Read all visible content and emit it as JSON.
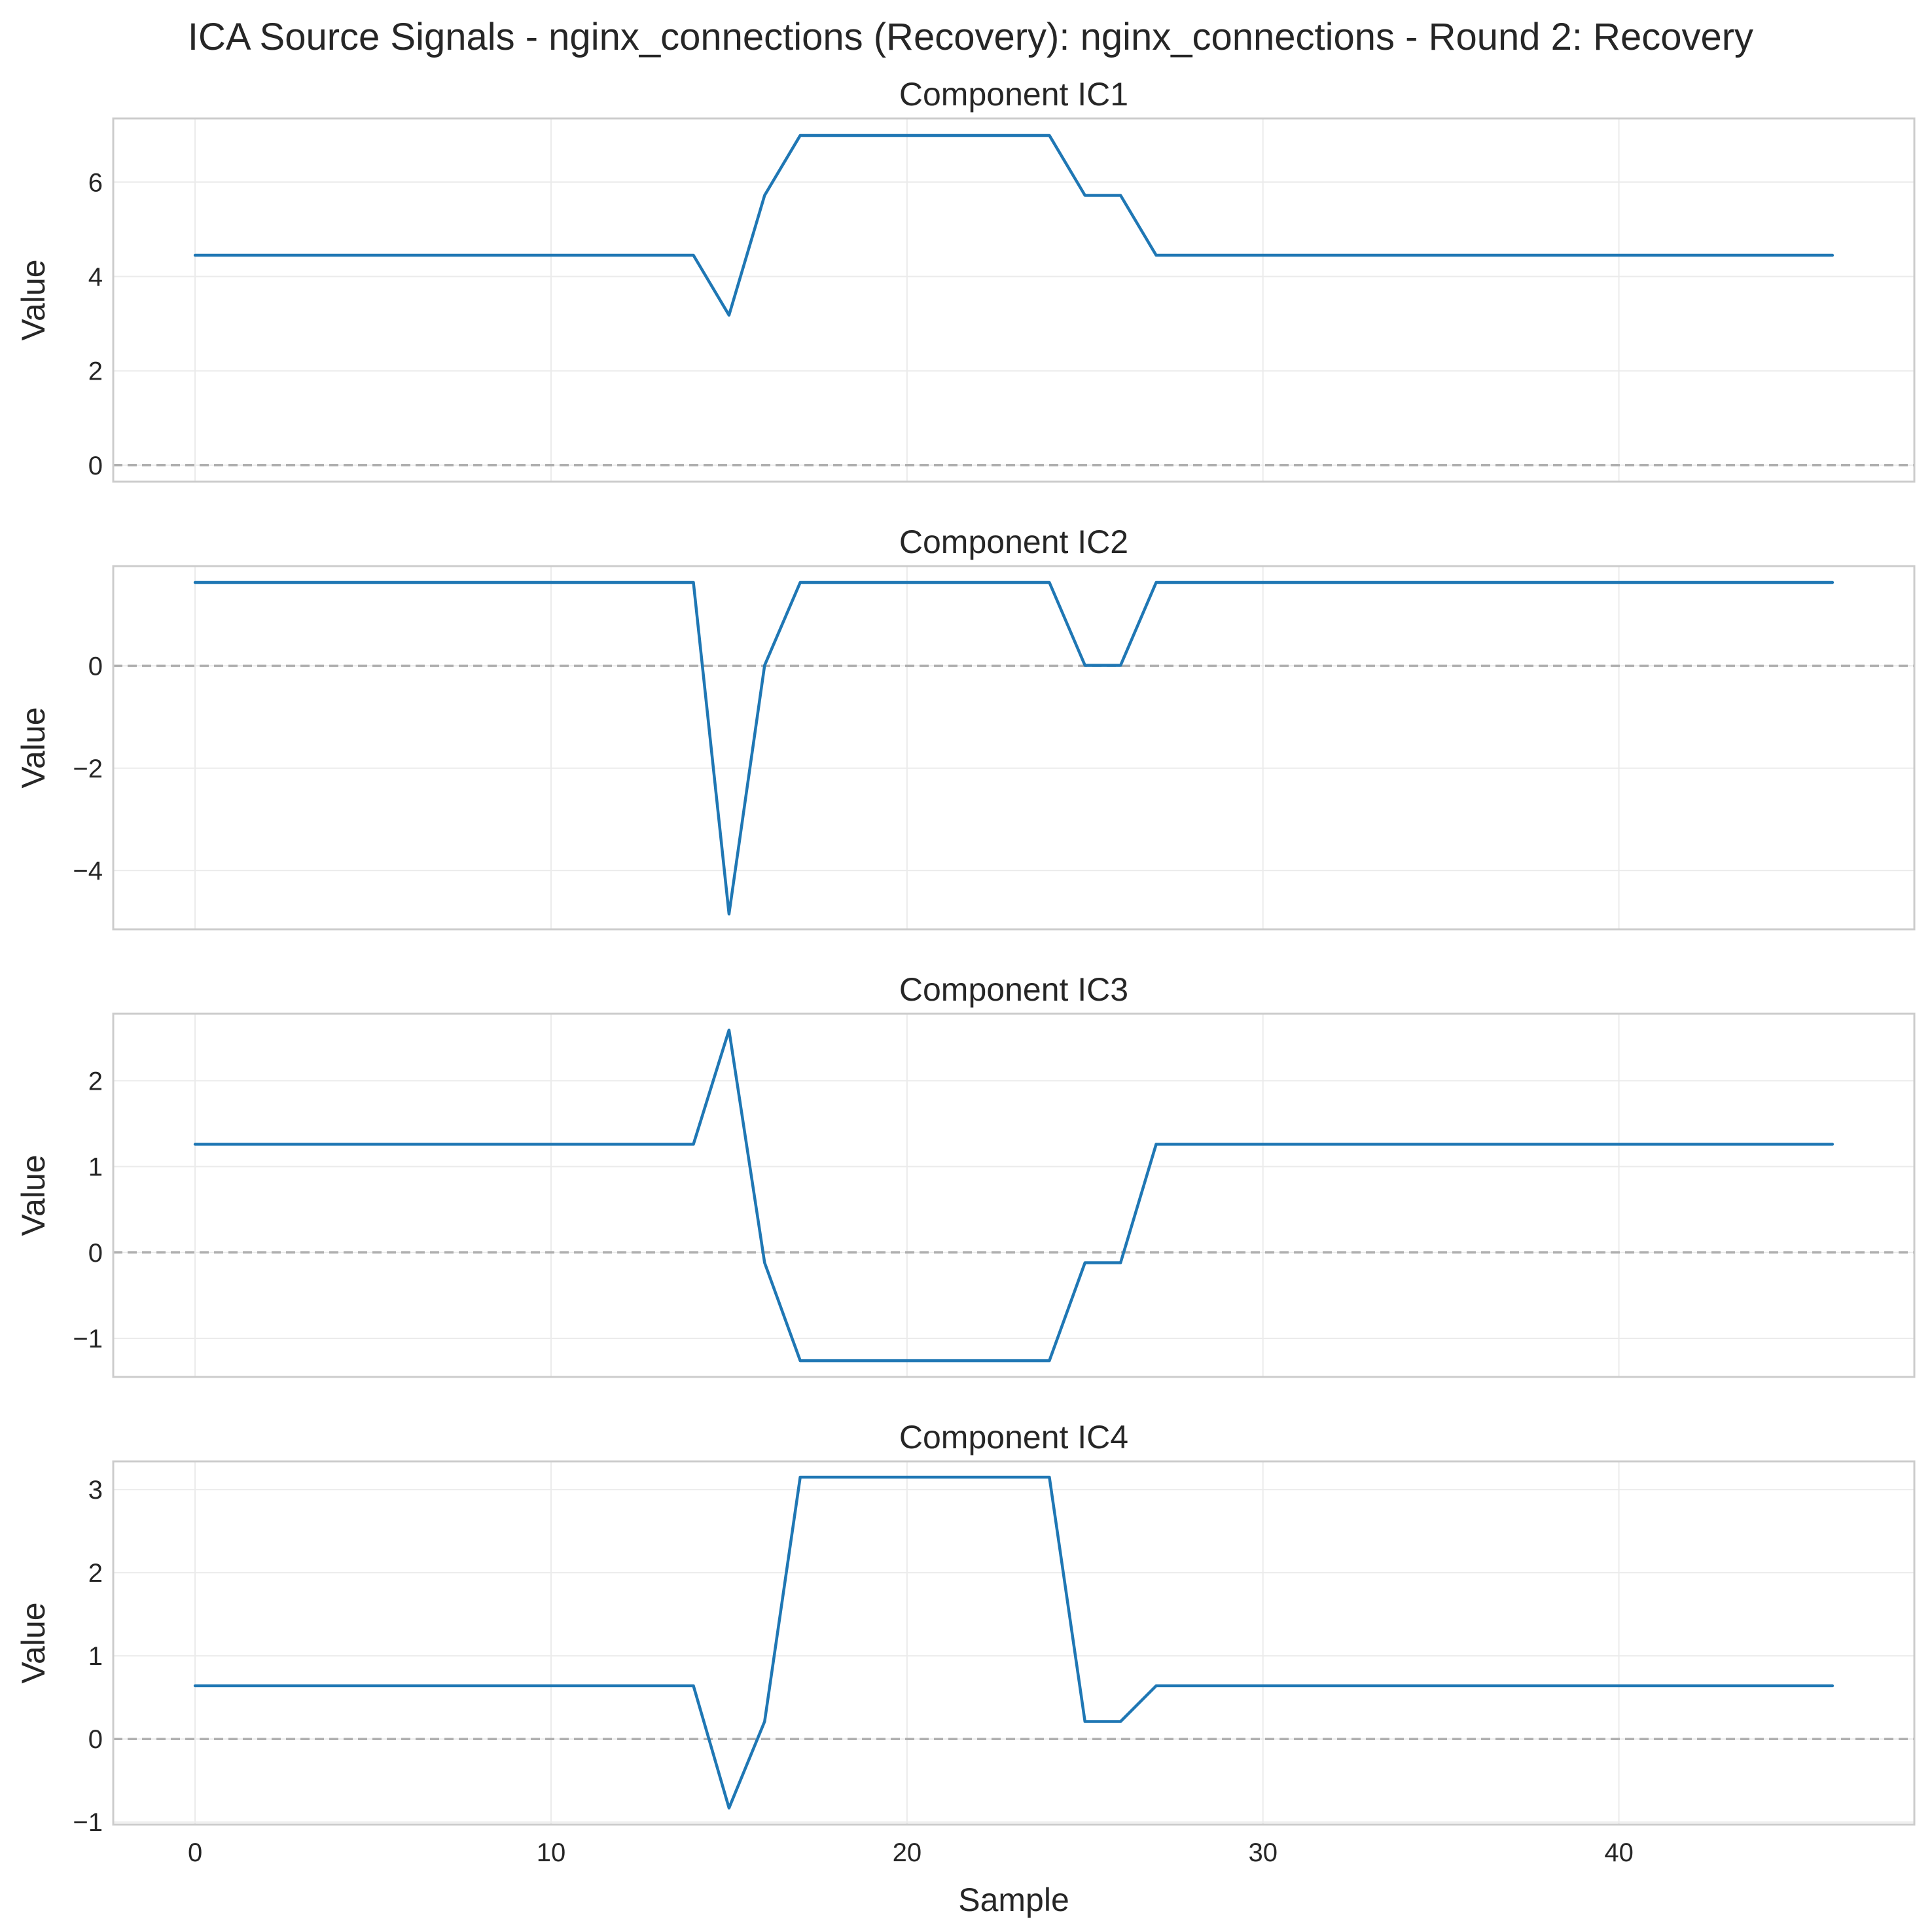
{
  "figure": {
    "title": "ICA Source Signals - nginx_connections (Recovery): nginx_connections - Round 2: Recovery"
  },
  "chart_data": [
    {
      "type": "line",
      "title": "Component IC1",
      "xlabel": "",
      "ylabel": "Value",
      "xlim": [
        -2.3,
        48.3
      ],
      "ylim": [
        -0.35,
        7.35
      ],
      "xticks": [
        0,
        10,
        20,
        30,
        40
      ],
      "yticks": [
        0,
        2,
        4,
        6
      ],
      "grid": true,
      "reference_line": 0,
      "series": [
        {
          "color": "#1f77b4",
          "x": [
            0,
            1,
            2,
            3,
            4,
            5,
            6,
            7,
            8,
            9,
            10,
            11,
            12,
            13,
            14,
            15,
            16,
            17,
            18,
            19,
            20,
            21,
            22,
            23,
            24,
            25,
            26,
            27,
            28,
            29,
            30,
            31,
            32,
            33,
            34,
            35,
            36,
            37,
            38,
            39,
            40,
            41,
            42,
            43,
            44,
            45,
            46
          ],
          "values": [
            4.45,
            4.45,
            4.45,
            4.45,
            4.45,
            4.45,
            4.45,
            4.45,
            4.45,
            4.45,
            4.45,
            4.45,
            4.45,
            4.45,
            4.45,
            3.18,
            5.72,
            6.99,
            6.99,
            6.99,
            6.99,
            6.99,
            6.99,
            6.99,
            6.99,
            5.72,
            5.72,
            4.45,
            4.45,
            4.45,
            4.45,
            4.45,
            4.45,
            4.45,
            4.45,
            4.45,
            4.45,
            4.45,
            4.45,
            4.45,
            4.45,
            4.45,
            4.45,
            4.45,
            4.45,
            4.45,
            4.45
          ]
        }
      ]
    },
    {
      "type": "line",
      "title": "Component IC2",
      "xlabel": "",
      "ylabel": "Value",
      "xlim": [
        -2.3,
        48.3
      ],
      "ylim": [
        -5.15,
        1.95
      ],
      "xticks": [
        0,
        10,
        20,
        30,
        40
      ],
      "yticks": [
        -4,
        -2,
        0
      ],
      "grid": true,
      "reference_line": 0,
      "series": [
        {
          "color": "#1f77b4",
          "x": [
            0,
            1,
            2,
            3,
            4,
            5,
            6,
            7,
            8,
            9,
            10,
            11,
            12,
            13,
            14,
            15,
            16,
            17,
            18,
            19,
            20,
            21,
            22,
            23,
            24,
            25,
            26,
            27,
            28,
            29,
            30,
            31,
            32,
            33,
            34,
            35,
            36,
            37,
            38,
            39,
            40,
            41,
            42,
            43,
            44,
            45,
            46
          ],
          "values": [
            1.63,
            1.63,
            1.63,
            1.63,
            1.63,
            1.63,
            1.63,
            1.63,
            1.63,
            1.63,
            1.63,
            1.63,
            1.63,
            1.63,
            1.63,
            -4.85,
            0.01,
            1.63,
            1.63,
            1.63,
            1.63,
            1.63,
            1.63,
            1.63,
            1.63,
            0.01,
            0.01,
            1.63,
            1.63,
            1.63,
            1.63,
            1.63,
            1.63,
            1.63,
            1.63,
            1.63,
            1.63,
            1.63,
            1.63,
            1.63,
            1.63,
            1.63,
            1.63,
            1.63,
            1.63,
            1.63,
            1.63
          ]
        }
      ]
    },
    {
      "type": "line",
      "title": "Component IC3",
      "xlabel": "",
      "ylabel": "Value",
      "xlim": [
        -2.3,
        48.3
      ],
      "ylim": [
        -1.45,
        2.78
      ],
      "xticks": [
        0,
        10,
        20,
        30,
        40
      ],
      "yticks": [
        -1,
        0,
        1,
        2
      ],
      "grid": true,
      "reference_line": 0,
      "series": [
        {
          "color": "#1f77b4",
          "x": [
            0,
            1,
            2,
            3,
            4,
            5,
            6,
            7,
            8,
            9,
            10,
            11,
            12,
            13,
            14,
            15,
            16,
            17,
            18,
            19,
            20,
            21,
            22,
            23,
            24,
            25,
            26,
            27,
            28,
            29,
            30,
            31,
            32,
            33,
            34,
            35,
            36,
            37,
            38,
            39,
            40,
            41,
            42,
            43,
            44,
            45,
            46
          ],
          "values": [
            1.26,
            1.26,
            1.26,
            1.26,
            1.26,
            1.26,
            1.26,
            1.26,
            1.26,
            1.26,
            1.26,
            1.26,
            1.26,
            1.26,
            1.26,
            2.59,
            -0.12,
            -1.26,
            -1.26,
            -1.26,
            -1.26,
            -1.26,
            -1.26,
            -1.26,
            -1.26,
            -0.12,
            -0.12,
            1.26,
            1.26,
            1.26,
            1.26,
            1.26,
            1.26,
            1.26,
            1.26,
            1.26,
            1.26,
            1.26,
            1.26,
            1.26,
            1.26,
            1.26,
            1.26,
            1.26,
            1.26,
            1.26,
            1.26
          ]
        }
      ]
    },
    {
      "type": "line",
      "title": "Component IC4",
      "xlabel": "Sample",
      "ylabel": "Value",
      "xlim": [
        -2.3,
        48.3
      ],
      "ylim": [
        -1.03,
        3.34
      ],
      "xticks": [
        0,
        10,
        20,
        30,
        40
      ],
      "yticks": [
        -1,
        0,
        1,
        2,
        3
      ],
      "grid": true,
      "reference_line": 0,
      "series": [
        {
          "color": "#1f77b4",
          "x": [
            0,
            1,
            2,
            3,
            4,
            5,
            6,
            7,
            8,
            9,
            10,
            11,
            12,
            13,
            14,
            15,
            16,
            17,
            18,
            19,
            20,
            21,
            22,
            23,
            24,
            25,
            26,
            27,
            28,
            29,
            30,
            31,
            32,
            33,
            34,
            35,
            36,
            37,
            38,
            39,
            40,
            41,
            42,
            43,
            44,
            45,
            46
          ],
          "values": [
            0.64,
            0.64,
            0.64,
            0.64,
            0.64,
            0.64,
            0.64,
            0.64,
            0.64,
            0.64,
            0.64,
            0.64,
            0.64,
            0.64,
            0.64,
            -0.83,
            0.21,
            3.15,
            3.15,
            3.15,
            3.15,
            3.15,
            3.15,
            3.15,
            3.15,
            0.21,
            0.21,
            0.64,
            0.64,
            0.64,
            0.64,
            0.64,
            0.64,
            0.64,
            0.64,
            0.64,
            0.64,
            0.64,
            0.64,
            0.64,
            0.64,
            0.64,
            0.64,
            0.64,
            0.64,
            0.64,
            0.64
          ]
        }
      ]
    }
  ]
}
